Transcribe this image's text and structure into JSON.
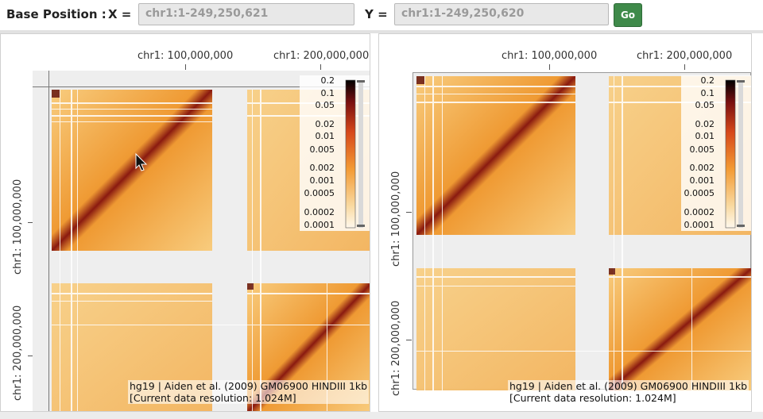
{
  "toolbar": {
    "base_position_label": "Base Position :",
    "x_label": "X =",
    "x_value": "chr1:1-249,250,621",
    "y_label": "Y =",
    "y_value": "chr1:1-249,250,620",
    "go_label": "Go"
  },
  "left_view": {
    "x_ticks": [
      "chr1: 100,000,000",
      "chr1: 200,000,000"
    ],
    "y_ticks": [
      "chr1: 100,000,000",
      "chr1: 200,000,000"
    ],
    "info_line1": "hg19 | Aiden et al. (2009) GM06900 HINDIII 1kb",
    "info_line2": "[Current data resolution: 1.024M]"
  },
  "right_view": {
    "x_ticks": [
      "chr1: 100,000,000",
      "chr1: 200,000,000"
    ],
    "y_ticks": [
      "chr1: 100,000,000",
      "chr1: 200,000,000"
    ],
    "info_line1": "hg19 | Aiden et al. (2009) GM06900 HINDIII 1kb",
    "info_line2": "[Current data resolution: 1.024M]"
  },
  "legend_values": [
    "0.2",
    "0.1",
    "0.05",
    "0.02",
    "0.01",
    "0.005",
    "0.002",
    "0.001",
    "0.0005",
    "0.0002",
    "0.0001"
  ],
  "colors": {
    "go_button": "#3f8a4a",
    "heat_low": "#f6c77a",
    "heat_mid": "#e8801e",
    "heat_high": "#7a1010",
    "gap": "#eeeeee"
  }
}
